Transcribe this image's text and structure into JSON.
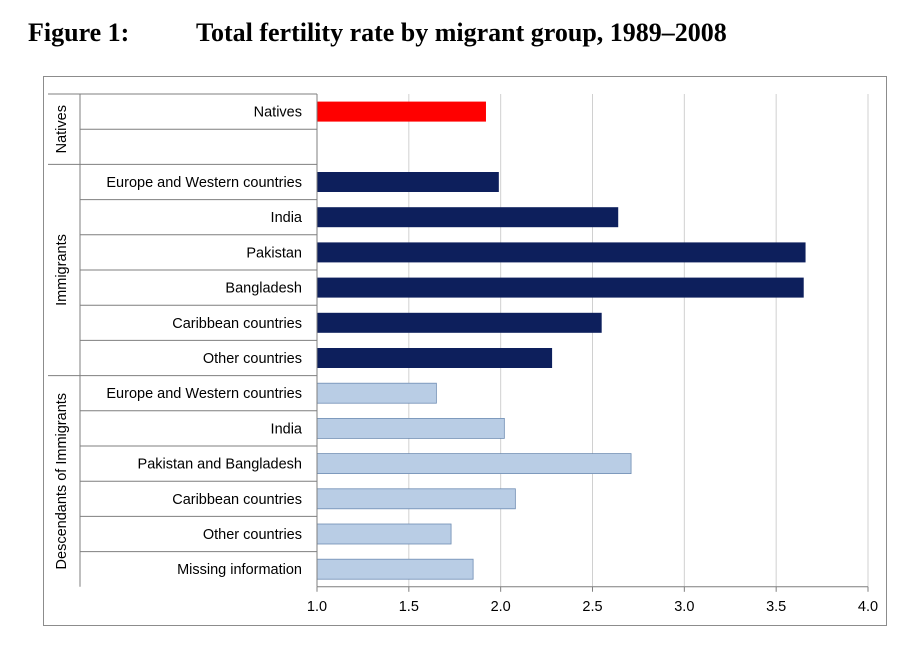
{
  "figure": {
    "number": "Figure 1:",
    "title": "Total fertility rate by migrant group, 1989–2008"
  },
  "chart_data": {
    "type": "bar",
    "orientation": "horizontal",
    "xlim": [
      1.0,
      4.0
    ],
    "x_ticks": [
      "1.0",
      "1.5",
      "2.0",
      "2.5",
      "3.0",
      "3.5",
      "4.0"
    ],
    "grid": true,
    "legend": "none",
    "colors": {
      "natives": "#ff0000",
      "immigrants": "#0d1f5c",
      "descendants": "#b9cde5"
    },
    "groups": [
      {
        "name": "Natives",
        "color_key": "natives",
        "categories": [
          "Natives",
          ""
        ],
        "values": [
          1.92,
          null
        ]
      },
      {
        "name": "Immigrants",
        "color_key": "immigrants",
        "categories": [
          "Europe and Western countries",
          "India",
          "Pakistan",
          "Bangladesh",
          "Caribbean countries",
          "Other countries"
        ],
        "values": [
          1.99,
          2.64,
          3.66,
          3.65,
          2.55,
          2.28
        ]
      },
      {
        "name": "Descendants of Immigrants",
        "color_key": "descendants",
        "categories": [
          "Europe and Western countries",
          "India",
          "Pakistan and Bangladesh",
          "Caribbean countries",
          "Other countries",
          "Missing information"
        ],
        "values": [
          1.65,
          2.02,
          2.71,
          2.08,
          1.73,
          1.85
        ]
      }
    ]
  }
}
